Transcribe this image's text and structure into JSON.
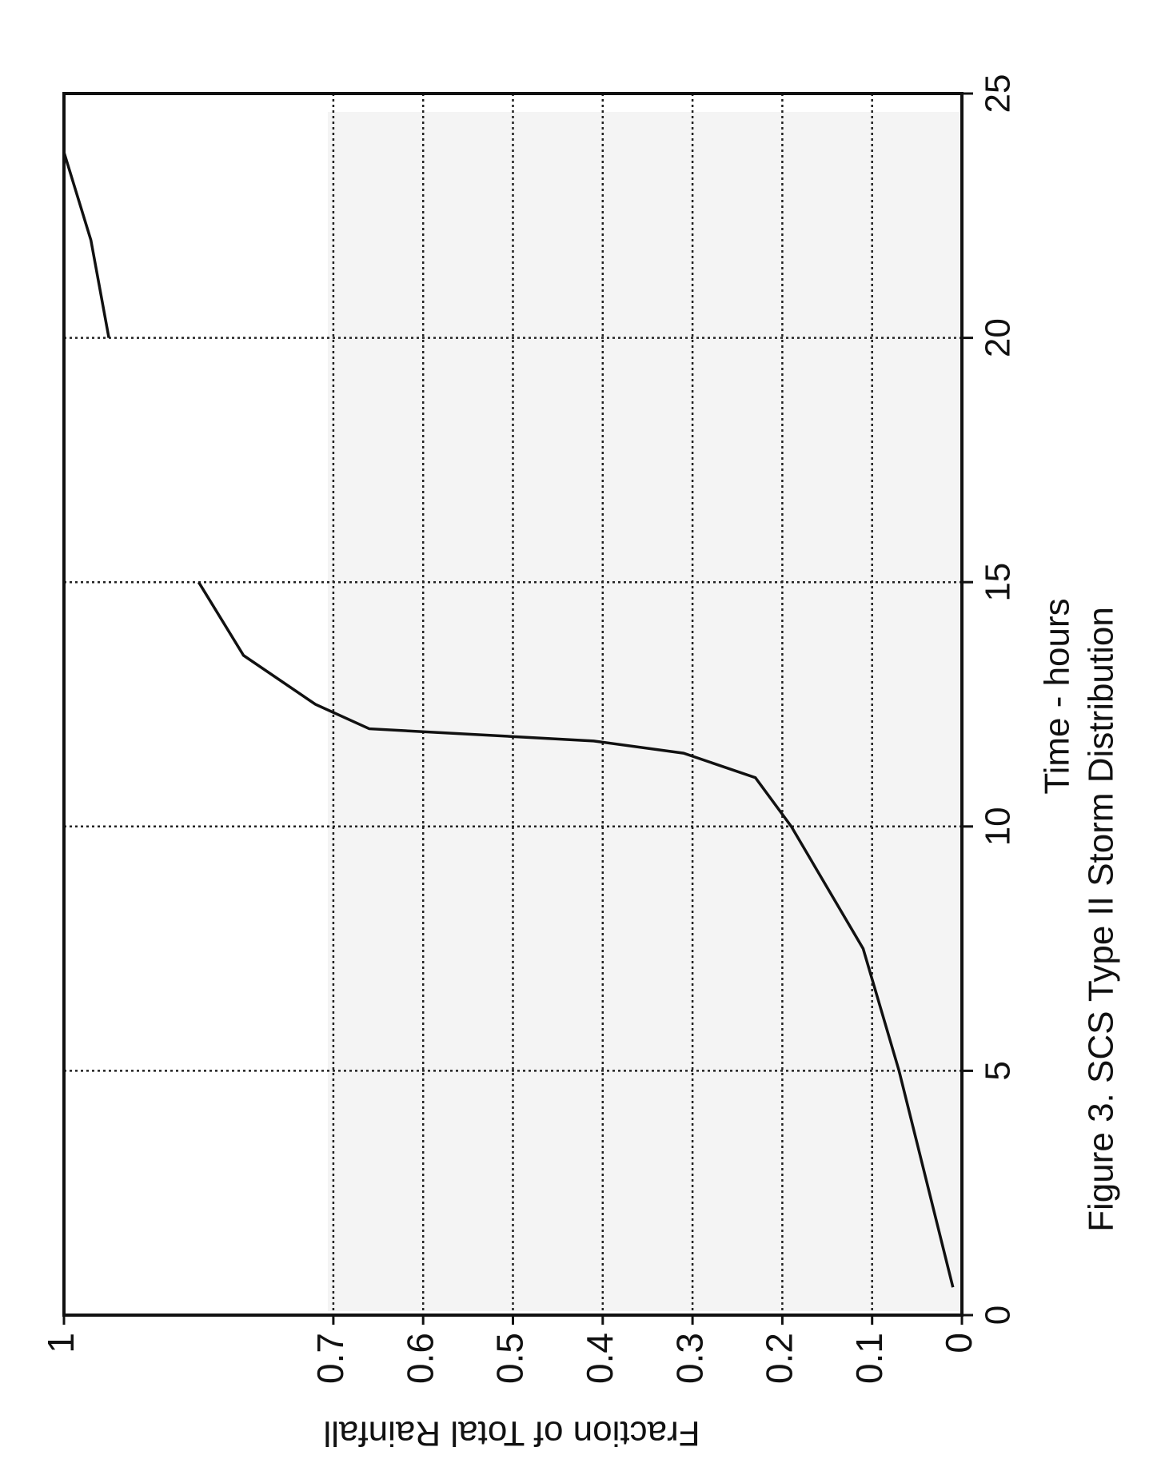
{
  "chart_data": {
    "type": "line",
    "title": "Figure 3.  SCS Type II Storm Distribution",
    "x_label": "Time - hours",
    "y_label": "Fraction of Total Rainfall",
    "x": [
      0.57,
      5,
      7.5,
      10,
      11,
      11.5,
      11.75,
      12,
      12.5,
      13.5,
      15,
      17.5,
      20,
      22,
      23.8
    ],
    "series": [
      {
        "color": "#111111",
        "values": [
          0.01,
          0.07,
          0.11,
          0.19,
          0.23,
          0.31,
          0.41,
          0.66,
          0.72,
          0.8,
          0.85,
          null,
          0.95,
          0.97,
          1.0
        ]
      }
    ],
    "xlim": [
      0,
      25
    ],
    "xticks": [
      0,
      5,
      10,
      15,
      20,
      25
    ],
    "ylim": [
      0,
      1
    ],
    "yticks": [
      0,
      0.1,
      0.2,
      0.3,
      0.4,
      0.5,
      0.6,
      0.7,
      1
    ],
    "grid": true
  }
}
